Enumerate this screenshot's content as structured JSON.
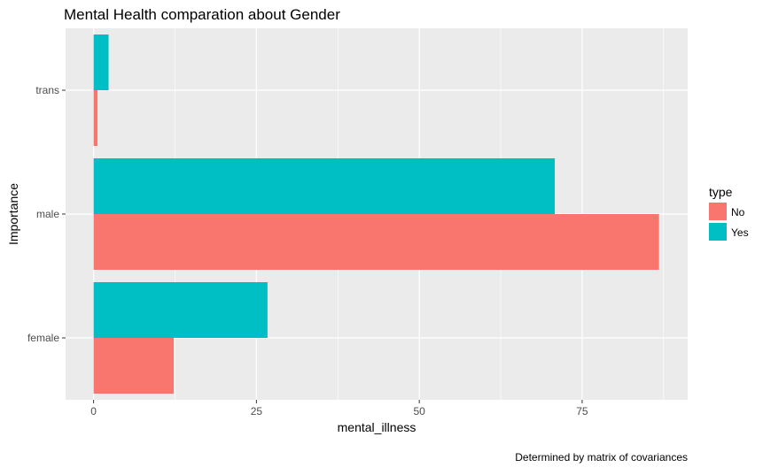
{
  "chart_data": {
    "type": "bar",
    "orientation": "horizontal",
    "title": "Mental Health comparation about Gender",
    "xlabel": "mental_illness",
    "ylabel": "Importance",
    "caption": "Determined by matrix of covariances",
    "categories": [
      "female",
      "male",
      "trans"
    ],
    "series": [
      {
        "name": "No",
        "color": "#f8766d",
        "values": [
          12.3,
          86.8,
          0.6
        ]
      },
      {
        "name": "Yes",
        "color": "#00bfc4",
        "values": [
          26.7,
          70.8,
          2.3
        ]
      }
    ],
    "xlim": [
      -4.3,
      91.2
    ],
    "xticks": [
      0,
      25,
      50,
      75
    ],
    "grid": true,
    "legend": {
      "title": "type",
      "position": "right"
    },
    "panel_color": "#ebebeb",
    "grid_color": "#ffffff"
  }
}
